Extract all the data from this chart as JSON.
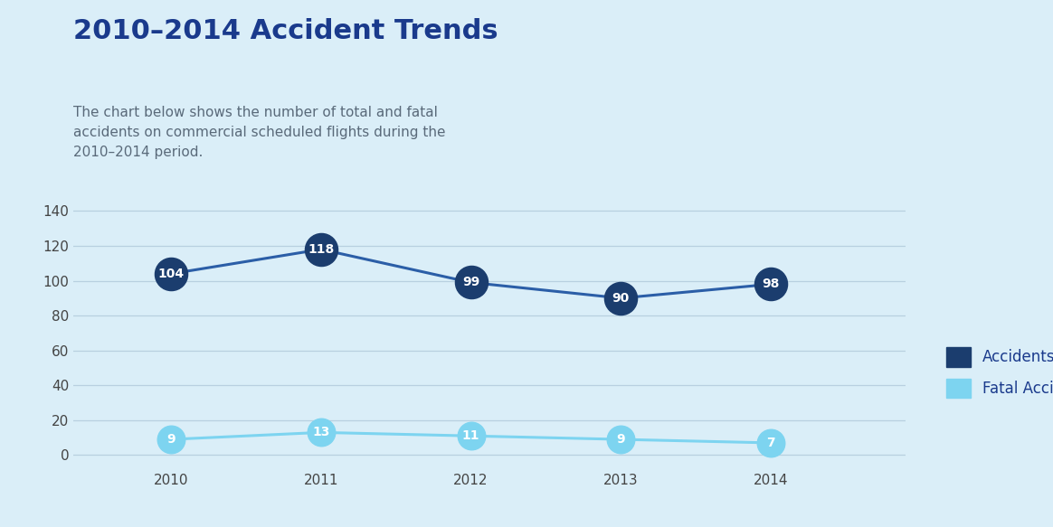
{
  "title": "2010–2014 Accident Trends",
  "subtitle": "The chart below shows the number of total and fatal\naccidents on commercial scheduled flights during the\n2010–2014 period.",
  "years": [
    2010,
    2011,
    2012,
    2013,
    2014
  ],
  "accidents": [
    104,
    118,
    99,
    90,
    98
  ],
  "fatal_accidents": [
    9,
    13,
    11,
    9,
    7
  ],
  "accidents_color": "#1b3d6e",
  "fatal_color": "#7dd4f0",
  "line_color_accidents": "#2b5ea7",
  "line_color_fatal": "#7dd4f0",
  "background_color": "#daeef8",
  "text_color_title": "#1a3a8c",
  "text_color_subtitle": "#5a6a7a",
  "yticks": [
    0,
    20,
    40,
    60,
    80,
    100,
    120,
    140
  ],
  "ylim": [
    -8,
    150
  ],
  "legend_labels": [
    "Accidents",
    "Fatal Accidents"
  ],
  "legend_colors": [
    "#1b3d6e",
    "#7dd4f0"
  ],
  "grid_color": "#b8d0e0",
  "marker_size_accidents": 26,
  "marker_size_fatal": 22,
  "font_size_title": 22,
  "font_size_subtitle": 11,
  "font_size_labels": 11,
  "font_size_data": 10,
  "xlim_left": 2009.35,
  "xlim_right": 2014.9
}
